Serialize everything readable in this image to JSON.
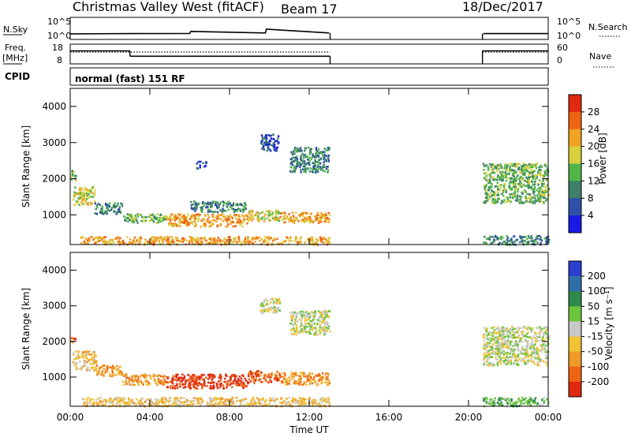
{
  "header": {
    "station": "Christmas Valley West (fitACF)",
    "beam": "Beam 17",
    "date": "18/Dec/2017"
  },
  "side_labels": {
    "nsky": "N.Sky",
    "nsearch": "N.Search",
    "freq_line1": "Freq.",
    "freq_line2": "[MHz]",
    "nave": "Nave",
    "cpid": "CPID"
  },
  "colors": {
    "axis": "#000000",
    "background": "#ffffff"
  },
  "chart_data": [
    {
      "type": "line",
      "name": "noise-panel",
      "ylabel_left": "N.Sky",
      "ylabel_right": "N.Search",
      "yticks_left": [
        "10^5",
        "10^0"
      ],
      "yticks_right": [
        "10^5",
        "10^0"
      ],
      "x_hours": [
        0,
        3,
        6,
        6.05,
        9.8,
        9.85,
        13,
        13.05,
        20.7,
        20.75,
        24
      ],
      "nsky_log": [
        0.55,
        0.6,
        0.65,
        1.1,
        0.75,
        1.6,
        0.75,
        null,
        null,
        0.6,
        0.6
      ]
    },
    {
      "type": "line",
      "name": "frequency-panel",
      "ylabel_left": "Freq. [MHz]",
      "ylabel_right": "Nave",
      "yticks_left": [
        "18",
        "8"
      ],
      "yticks_right": [
        "60",
        "0"
      ],
      "freq_segments": [
        {
          "x": [
            0,
            3
          ],
          "y": 14.6
        },
        {
          "x": [
            3,
            13.05
          ],
          "y": 11.9
        },
        {
          "x": [
            20.7,
            24
          ],
          "y": 14.6
        }
      ],
      "nave_segments": [
        {
          "x": [
            0,
            13.05
          ],
          "y": 36
        },
        {
          "x": [
            20.7,
            24
          ],
          "y": 36
        }
      ]
    },
    {
      "type": "text",
      "name": "cpid-panel",
      "label": "CPID",
      "value": "normal (fast) 151 RF"
    },
    {
      "type": "heatmap",
      "name": "power-panel",
      "x_label": "",
      "y_label": "Slant Range [km]",
      "xlim": [
        0,
        24
      ],
      "ylim": [
        180,
        4500
      ],
      "yticks": [
        1000,
        2000,
        3000,
        4000
      ],
      "ytick_labels": [
        "1000",
        "2000",
        "3000",
        "4000"
      ],
      "colorbar": {
        "label": "Power [dB]",
        "ticks": [
          "4",
          "8",
          "12",
          "16",
          "20",
          "24",
          "28"
        ],
        "colors": [
          "#1a1ae6",
          "#2f4fa8",
          "#3d7f6a",
          "#52b548",
          "#d8d03c",
          "#f0a223",
          "#ee6414",
          "#e02a10"
        ]
      },
      "clusters": [
        {
          "hours": [
            0.0,
            0.25
          ],
          "range": [
            1950,
            2250
          ],
          "level": 3
        },
        {
          "hours": [
            0.1,
            1.2
          ],
          "range": [
            1300,
            1800
          ],
          "level": 4
        },
        {
          "hours": [
            1.2,
            2.6
          ],
          "range": [
            1050,
            1350
          ],
          "level": 2
        },
        {
          "hours": [
            2.6,
            4.8
          ],
          "range": [
            800,
            1050
          ],
          "level": 3
        },
        {
          "hours": [
            4.8,
            8.9
          ],
          "range": [
            700,
            1050
          ],
          "level": 5
        },
        {
          "hours": [
            8.9,
            10.5
          ],
          "range": [
            850,
            1150
          ],
          "level": 4
        },
        {
          "hours": [
            10.5,
            13.0
          ],
          "range": [
            800,
            1100
          ],
          "level": 5
        },
        {
          "hours": [
            6.0,
            8.8
          ],
          "range": [
            1100,
            1400
          ],
          "level": 2
        },
        {
          "hours": [
            11.0,
            13.0
          ],
          "range": [
            2200,
            2900
          ],
          "level": 2
        },
        {
          "hours": [
            9.5,
            10.5
          ],
          "range": [
            2800,
            3250
          ],
          "level": 1
        },
        {
          "hours": [
            0.5,
            13.0
          ],
          "range": [
            200,
            420
          ],
          "level": 5
        },
        {
          "hours": [
            20.7,
            24.0
          ],
          "range": [
            1350,
            2450
          ],
          "level": 3
        },
        {
          "hours": [
            20.7,
            24.0
          ],
          "range": [
            200,
            450
          ],
          "level": 2
        },
        {
          "hours": [
            6.3,
            6.8
          ],
          "range": [
            2300,
            2500
          ],
          "level": 1
        }
      ]
    },
    {
      "type": "heatmap",
      "name": "velocity-panel",
      "x_label": "Time UT",
      "y_label": "Slant Range [km]",
      "xlim": [
        0,
        24
      ],
      "ylim": [
        180,
        4500
      ],
      "xticks": [
        0,
        4,
        8,
        12,
        16,
        20,
        24
      ],
      "xtick_labels": [
        "00:00",
        "04:00",
        "08:00",
        "12:00",
        "16:00",
        "20:00",
        "00:00"
      ],
      "yticks": [
        1000,
        2000,
        3000,
        4000
      ],
      "ytick_labels": [
        "1000",
        "2000",
        "3000",
        "4000"
      ],
      "colorbar": {
        "label": "Velocity [m s⁻¹]",
        "ticks": [
          "200",
          "100",
          "50",
          "15",
          "-15",
          "-50",
          "-100",
          "-200"
        ],
        "colors": [
          "#2a3fcf",
          "#2f6fa8",
          "#2e8a4a",
          "#6bc43a",
          "#c8c8c8",
          "#f1c232",
          "#f19a28",
          "#ee6414",
          "#e02a10"
        ]
      },
      "clusters": [
        {
          "hours": [
            0.0,
            0.25
          ],
          "range": [
            1950,
            2150
          ],
          "level": 7
        },
        {
          "hours": [
            0.1,
            1.3
          ],
          "range": [
            1200,
            1750
          ],
          "level": 5
        },
        {
          "hours": [
            1.3,
            2.6
          ],
          "range": [
            1050,
            1350
          ],
          "level": 6
        },
        {
          "hours": [
            2.6,
            4.8
          ],
          "range": [
            800,
            1100
          ],
          "level": 6
        },
        {
          "hours": [
            4.8,
            8.9
          ],
          "range": [
            700,
            1100
          ],
          "level": 8
        },
        {
          "hours": [
            8.9,
            10.5
          ],
          "range": [
            850,
            1200
          ],
          "level": 7
        },
        {
          "hours": [
            10.5,
            13.0
          ],
          "range": [
            800,
            1150
          ],
          "level": 6
        },
        {
          "hours": [
            11.0,
            13.0
          ],
          "range": [
            2200,
            2900
          ],
          "level": 4
        },
        {
          "hours": [
            9.5,
            10.5
          ],
          "range": [
            2800,
            3250
          ],
          "level": 4
        },
        {
          "hours": [
            0.5,
            13.0
          ],
          "range": [
            200,
            450
          ],
          "level": 5
        },
        {
          "hours": [
            20.7,
            24.0
          ],
          "range": [
            1350,
            2450
          ],
          "level": 4
        },
        {
          "hours": [
            20.7,
            24.0
          ],
          "range": [
            200,
            450
          ],
          "level": 3
        }
      ]
    }
  ]
}
